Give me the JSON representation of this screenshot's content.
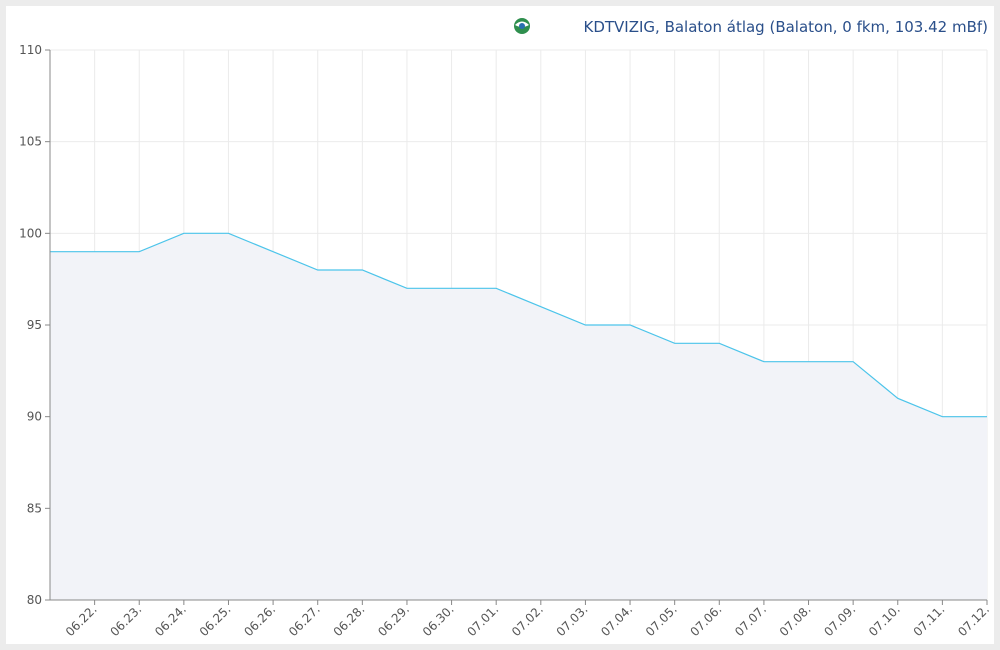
{
  "chart_data": {
    "type": "line",
    "title": "KDTVIZIG, Balaton átlag (Balaton, 0 fkm, 103.42 mBf)",
    "categories": [
      null,
      "06.22.",
      "06.23.",
      "06.24.",
      "06.25.",
      "06.26.",
      "06.27.",
      "06.28.",
      "06.29.",
      "06.30.",
      "07.01.",
      "07.02.",
      "07.03.",
      "07.04.",
      "07.05.",
      "07.06.",
      "07.07.",
      "07.08.",
      "07.09.",
      "07.10.",
      "07.11.",
      "07.12."
    ],
    "values": [
      99,
      99,
      99,
      100,
      100,
      99,
      98,
      98,
      97,
      97,
      97,
      96,
      95,
      95,
      94,
      94,
      93,
      93,
      93,
      91,
      90,
      90
    ],
    "color": "#4cc4ea",
    "area_color": "#f2f3f8",
    "ylim": [
      80,
      110
    ],
    "yticks": [
      80,
      85,
      90,
      95,
      100,
      105,
      110
    ],
    "grid": true
  }
}
